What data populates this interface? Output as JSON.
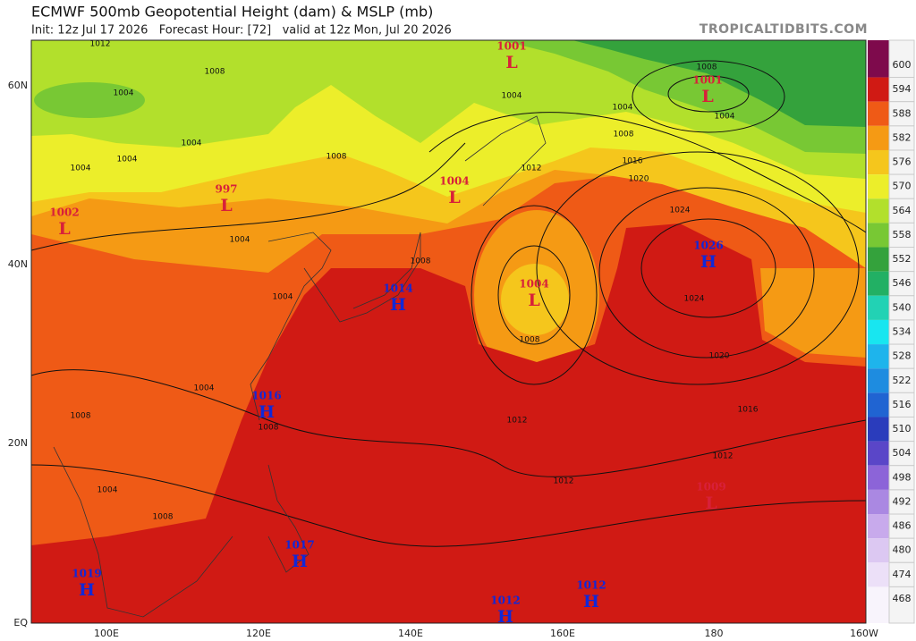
{
  "header": {
    "title": "ECMWF 500mb Geopotential Height (dam) & MSLP (mb)",
    "subtitle": "Init: 12z Jul 17 2026   Forecast Hour: [72]   valid at 12z Mon, Jul 20 2026",
    "brand": "TROPICALTIDBITS.COM"
  },
  "map": {
    "lat_labels": [
      "60N",
      "40N",
      "20N",
      "EQ"
    ],
    "lon_labels": [
      "100E",
      "120E",
      "140E",
      "160E",
      "180",
      "160W"
    ],
    "centers": [
      {
        "letter": "L",
        "value": 1001
      },
      {
        "letter": "L",
        "value": 1001
      },
      {
        "letter": "L",
        "value": 1004
      },
      {
        "letter": "L",
        "value": 997
      },
      {
        "letter": "L",
        "value": 1002
      },
      {
        "letter": "H",
        "value": 1014
      },
      {
        "letter": "L",
        "value": 1004
      },
      {
        "letter": "H",
        "value": 1026
      },
      {
        "letter": "H",
        "value": 1016
      },
      {
        "letter": "L",
        "value": 1009
      },
      {
        "letter": "H",
        "value": 1017
      },
      {
        "letter": "H",
        "value": 1019
      },
      {
        "letter": "H",
        "value": 1012
      },
      {
        "letter": "H",
        "value": 1012
      }
    ],
    "isobar_labels": [
      1012,
      1008,
      1004,
      1004,
      1004,
      1004,
      1008,
      1004,
      1012,
      1008,
      1016,
      1020,
      1024,
      1024,
      1020,
      1016,
      1012,
      1012,
      1012,
      1008,
      1004,
      1004,
      1008,
      1004,
      1004,
      1004,
      1008,
      1004,
      1008,
      1008,
      1008
    ]
  },
  "colorbar": {
    "levels": [
      600,
      594,
      588,
      582,
      576,
      570,
      564,
      558,
      552,
      546,
      540,
      534,
      528,
      522,
      516,
      510,
      504,
      498,
      492,
      486,
      480,
      474,
      468
    ],
    "colors": [
      "#7e0a4c",
      "#d01a14",
      "#ef5a16",
      "#f59a14",
      "#f5c61c",
      "#ecee2a",
      "#b2e02c",
      "#78c834",
      "#34a23c",
      "#22b064",
      "#22d2b4",
      "#18e6f0",
      "#1eb4ec",
      "#1e8ce0",
      "#2064d2",
      "#2a3cbc",
      "#5a46c8",
      "#8c64d8",
      "#aa88e2",
      "#c8aaec",
      "#dcc8f2",
      "#ece0f8",
      "#f8f4fc"
    ]
  }
}
